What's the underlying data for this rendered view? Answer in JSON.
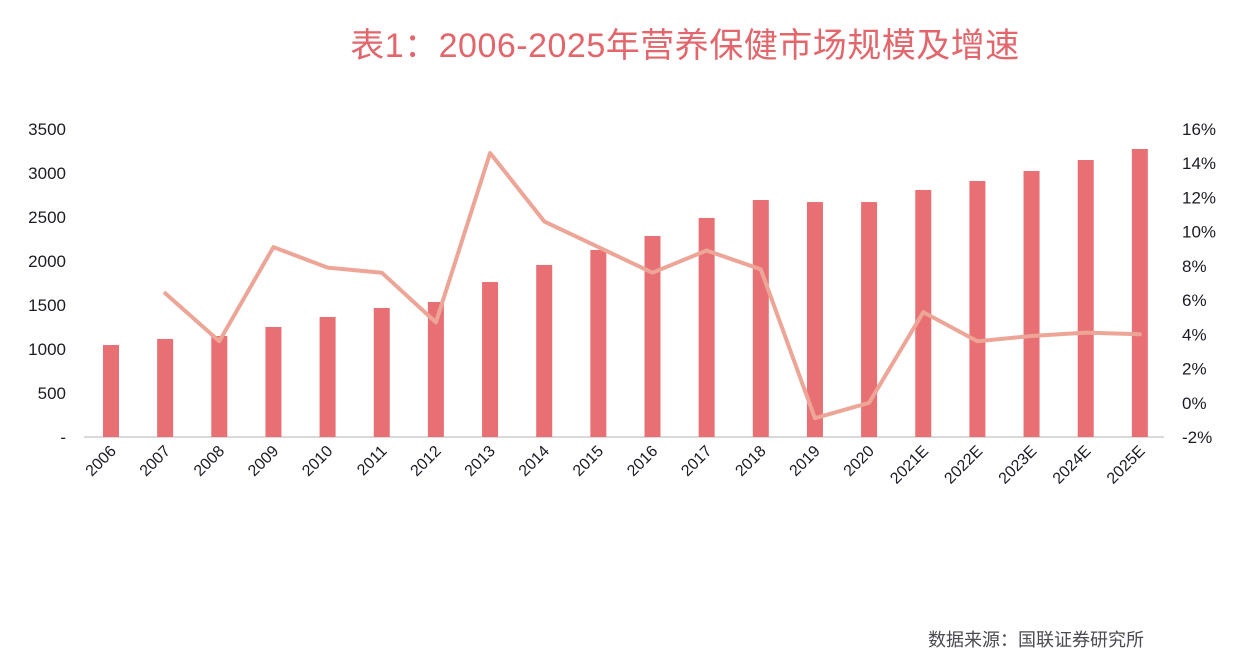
{
  "title": "表1：2006-2025年营养保健市场规模及增速",
  "source": "数据来源：国联证券研究所",
  "colors": {
    "title": "#e2666b",
    "bars": "#e87074",
    "line": "#eca596",
    "axis_line": "#d9d9d9",
    "tick_text": "#1c1a24"
  },
  "chart_data": {
    "type": "bar+line",
    "title": "表1：2006-2025年营养保健市场规模及增速",
    "xlabel": "",
    "ylabel": "",
    "y2label": "",
    "categories": [
      "2006",
      "2007",
      "2008",
      "2009",
      "2010",
      "2011",
      "2012",
      "2013",
      "2014",
      "2015",
      "2016",
      "2017",
      "2018",
      "2019",
      "2020",
      "2021E",
      "2022E",
      "2023E",
      "2024E",
      "2025E"
    ],
    "series": [
      {
        "name": "营养保健市场规模",
        "type": "bar",
        "axis": "left",
        "values": [
          1045,
          1114,
          1148,
          1250,
          1364,
          1466,
          1534,
          1761,
          1955,
          2125,
          2284,
          2489,
          2693,
          2670,
          2670,
          2807,
          2909,
          3023,
          3148,
          3273
        ]
      },
      {
        "name": "增速",
        "type": "line",
        "axis": "right",
        "values": [
          null,
          6.4,
          3.6,
          9.1,
          7.9,
          7.6,
          4.7,
          14.6,
          10.6,
          9.1,
          7.6,
          8.9,
          7.8,
          -0.9,
          0.0,
          5.3,
          3.6,
          3.9,
          4.1,
          4.0
        ]
      }
    ],
    "ylim": [
      0,
      3500
    ],
    "y2lim": [
      -2,
      16
    ],
    "yticks": [
      "-",
      "500",
      "1000",
      "1500",
      "2000",
      "2500",
      "3000",
      "3500"
    ],
    "y2ticks": [
      "-2%",
      "0%",
      "2%",
      "4%",
      "6%",
      "8%",
      "10%",
      "12%",
      "14%",
      "16%"
    ],
    "grid": false,
    "legend": "none"
  }
}
